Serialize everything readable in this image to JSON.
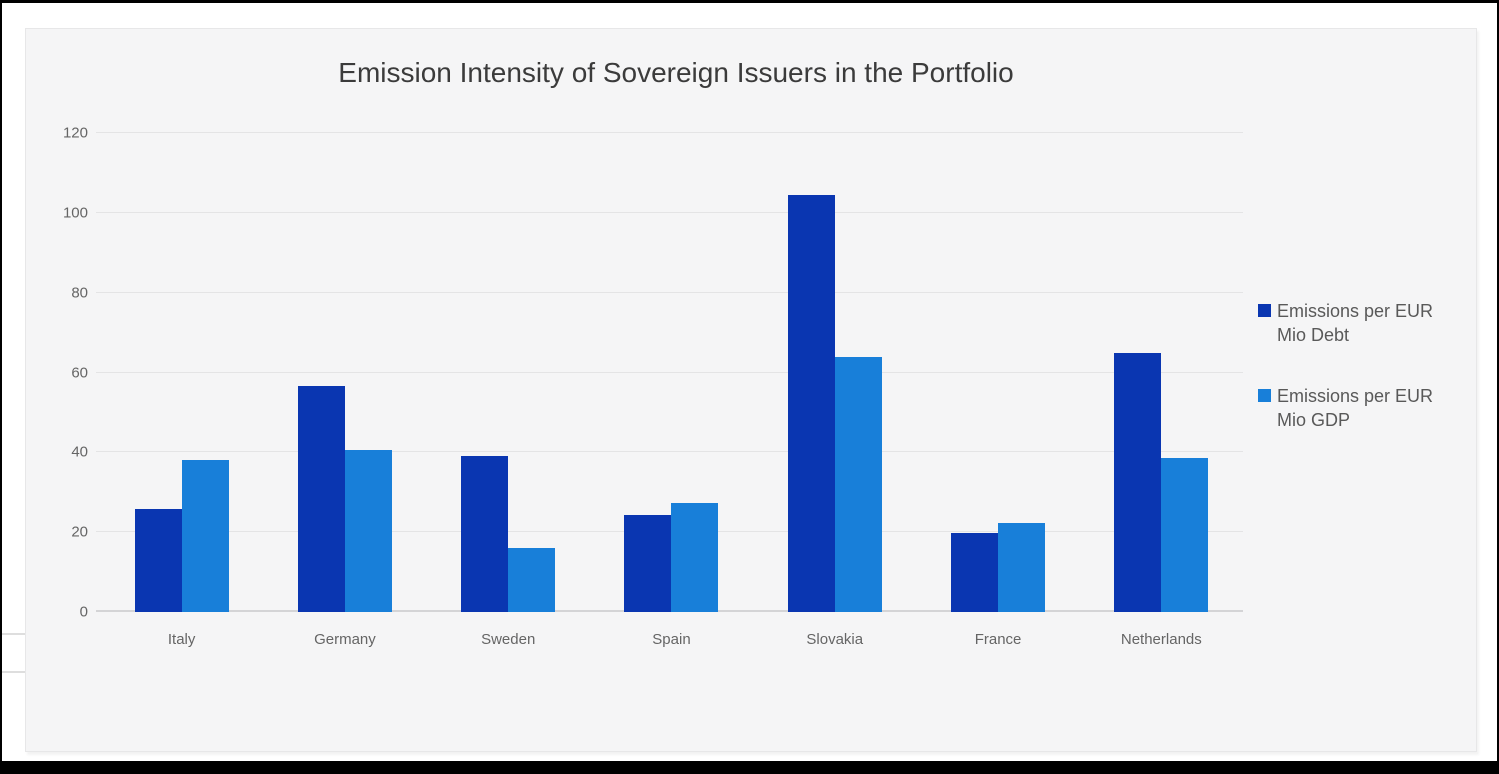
{
  "window": {
    "background": "#ffffff",
    "frame_color": "#000000",
    "card_background": "#f5f5f6",
    "card_border": "#e7e7e8"
  },
  "chart_data": {
    "type": "bar",
    "title": "Emission Intensity of Sovereign Issuers in the Portfolio",
    "categories": [
      "Italy",
      "Germany",
      "Sweden",
      "Spain",
      "Slovakia",
      "France",
      "Netherlands"
    ],
    "series": [
      {
        "name": "Emissions per EUR Mio Debt",
        "color": "#0a36b1",
        "values": [
          25.7,
          56.5,
          39,
          24.4,
          104.5,
          19.8,
          65
        ]
      },
      {
        "name": "Emissions per EUR Mio GDP",
        "color": "#187fd9",
        "values": [
          38.2,
          40.7,
          16,
          27.3,
          64,
          22.2,
          38.6
        ]
      }
    ],
    "xlabel": "",
    "ylabel": "",
    "ylim": [
      0,
      120
    ],
    "yticks": [
      0,
      20,
      40,
      60,
      80,
      100,
      120
    ],
    "grid": true,
    "gridline_color": "#e4e4e5",
    "axis_text_color": "#656565",
    "title_color": "#3b3b3b",
    "legend_position": "right",
    "legend_text_color": "#595959"
  }
}
